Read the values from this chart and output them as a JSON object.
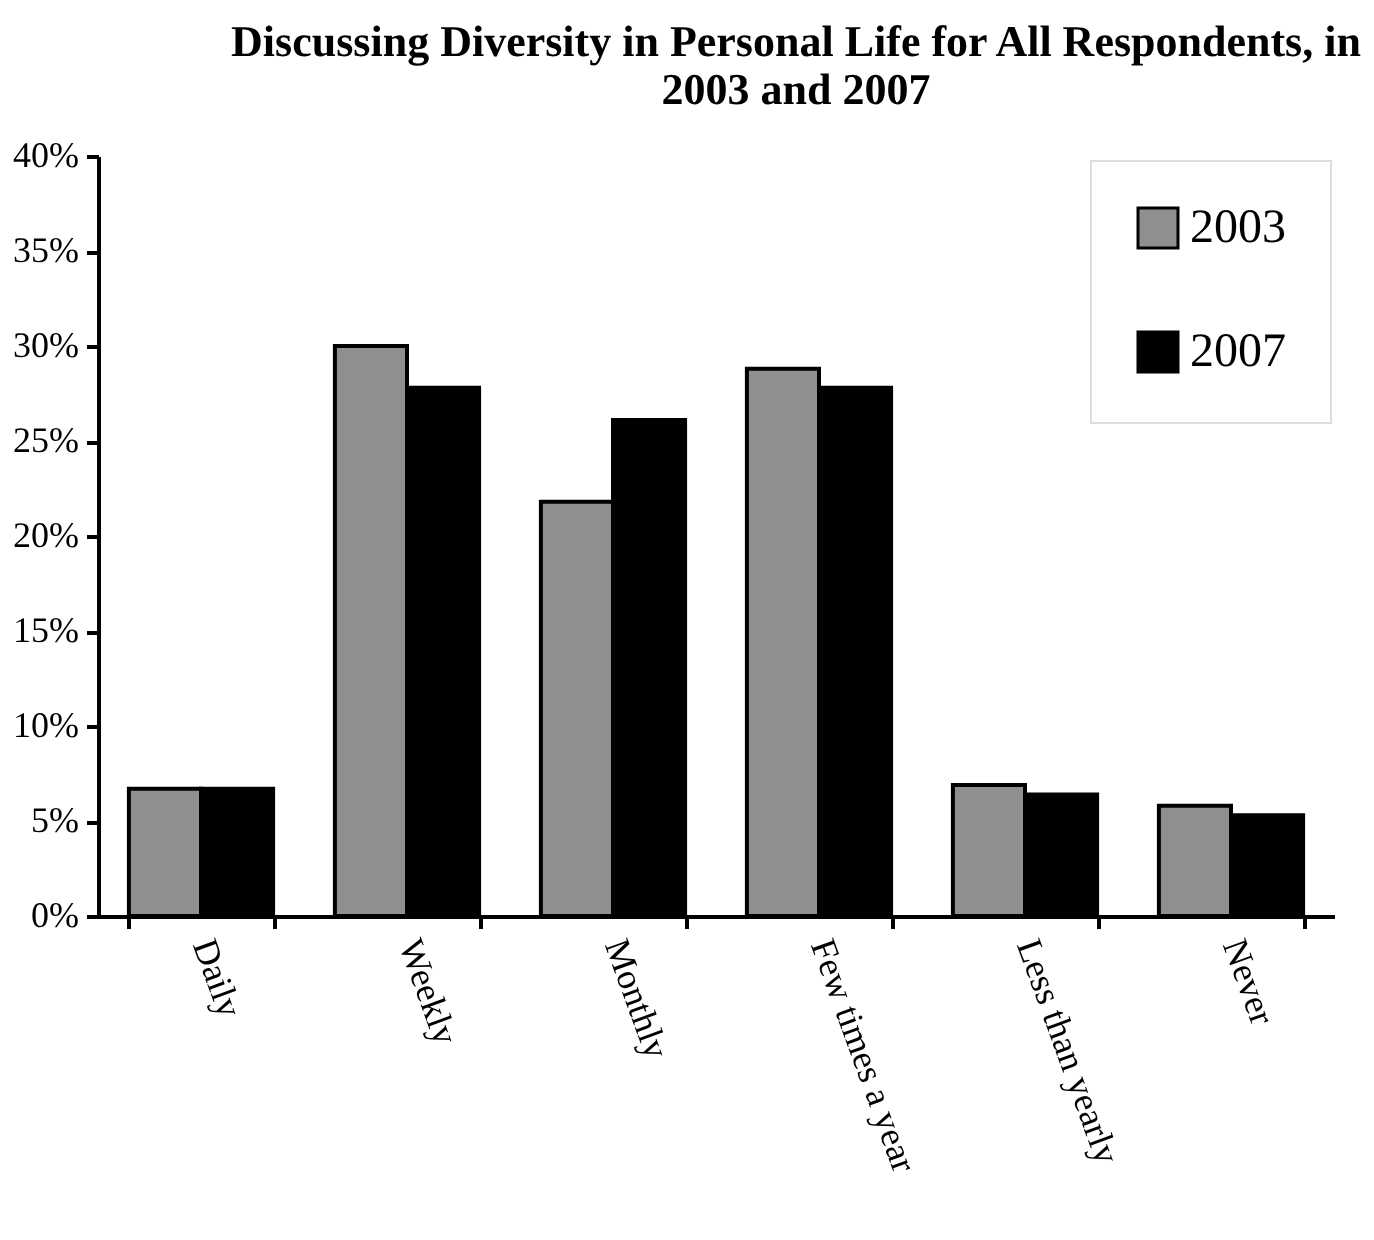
{
  "chart_data": {
    "type": "bar",
    "title": "Discussing Diversity in Personal Life for All Respondents, in 2003 and 2007",
    "categories": [
      "Daily",
      "Weekly",
      "Monthly",
      "Few times a year",
      "Less than yearly",
      "Never"
    ],
    "series": [
      {
        "name": "2003",
        "color": "#8f8f8f",
        "values": [
          6.7,
          30,
          21.8,
          28.8,
          6.9,
          5.8
        ]
      },
      {
        "name": "2007",
        "color": "#000000",
        "values": [
          6.7,
          27.8,
          26.1,
          27.8,
          6.4,
          5.3
        ]
      }
    ],
    "ylim": [
      0,
      40
    ],
    "yticks": [
      {
        "value": 0,
        "label": "0%"
      },
      {
        "value": 5,
        "label": "5%"
      },
      {
        "value": 10,
        "label": "10%"
      },
      {
        "value": 15,
        "label": "15%"
      },
      {
        "value": 20,
        "label": "20%"
      },
      {
        "value": 25,
        "label": "25%"
      },
      {
        "value": 30,
        "label": "30%"
      },
      {
        "value": 35,
        "label": "35%"
      },
      {
        "value": 40,
        "label": "40%"
      }
    ],
    "grid": false,
    "legend": "top right"
  }
}
